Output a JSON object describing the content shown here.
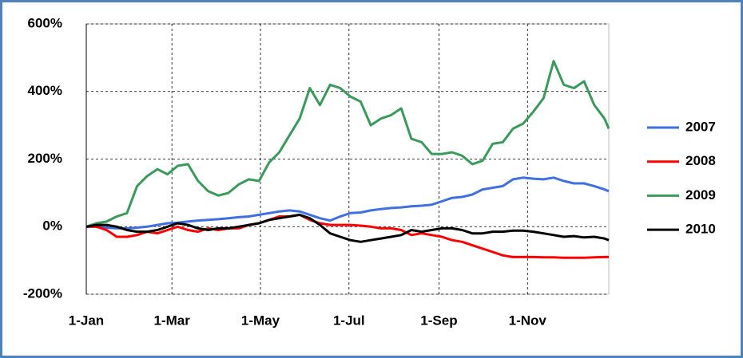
{
  "chart_data": {
    "type": "line",
    "x": [
      0,
      7,
      14,
      21,
      28,
      35,
      42,
      49,
      56,
      63,
      70,
      77,
      84,
      91,
      98,
      105,
      112,
      119,
      126,
      133,
      140,
      147,
      154,
      161,
      168,
      175,
      182,
      189,
      196,
      203,
      210,
      217,
      224,
      231,
      238,
      245,
      252,
      259,
      266,
      273,
      280,
      287,
      294,
      301,
      308,
      315,
      322,
      329,
      336,
      343,
      350,
      357,
      360
    ],
    "xlim": [
      0,
      360
    ],
    "xticks": [
      {
        "value": 0,
        "label": "1-Jan"
      },
      {
        "value": 59,
        "label": "1-Mar"
      },
      {
        "value": 120,
        "label": "1-May"
      },
      {
        "value": 181,
        "label": "1-Jul"
      },
      {
        "value": 243,
        "label": "1-Sep"
      },
      {
        "value": 304,
        "label": "1-Nov"
      }
    ],
    "ylim": [
      -200,
      600
    ],
    "yticks": [
      {
        "value": -200,
        "label": "-200%"
      },
      {
        "value": 0,
        "label": "0%"
      },
      {
        "value": 200,
        "label": "200%"
      },
      {
        "value": 400,
        "label": "400%"
      },
      {
        "value": 600,
        "label": "600%"
      }
    ],
    "grid": true,
    "legend": "right",
    "series": [
      {
        "name": "2007",
        "color": "#3f6fe0",
        "values": [
          0,
          0,
          -3,
          -5,
          -5,
          -3,
          0,
          5,
          10,
          12,
          15,
          18,
          20,
          22,
          25,
          28,
          30,
          35,
          40,
          45,
          48,
          45,
          35,
          25,
          18,
          30,
          40,
          42,
          48,
          52,
          55,
          57,
          60,
          62,
          65,
          75,
          85,
          88,
          95,
          110,
          115,
          120,
          140,
          145,
          142,
          140,
          145,
          135,
          128,
          128,
          120,
          110,
          105
        ]
      },
      {
        "name": "2008",
        "color": "#ff0000",
        "values": [
          0,
          0,
          -10,
          -30,
          -30,
          -25,
          -15,
          -20,
          -10,
          0,
          -10,
          -15,
          -5,
          -10,
          -5,
          -5,
          5,
          10,
          20,
          30,
          30,
          35,
          20,
          10,
          5,
          5,
          5,
          3,
          0,
          -5,
          -5,
          -10,
          -25,
          -20,
          -25,
          -30,
          -40,
          -45,
          -55,
          -65,
          -75,
          -85,
          -90,
          -90,
          -90,
          -91,
          -91,
          -92,
          -92,
          -92,
          -91,
          -90,
          -90
        ]
      },
      {
        "name": "2009",
        "color": "#3a9a5c",
        "values": [
          0,
          10,
          15,
          30,
          40,
          120,
          150,
          170,
          155,
          180,
          185,
          135,
          105,
          92,
          100,
          125,
          140,
          135,
          190,
          220,
          270,
          320,
          410,
          360,
          420,
          410,
          385,
          370,
          300,
          320,
          330,
          350,
          260,
          250,
          215,
          215,
          220,
          210,
          185,
          195,
          245,
          250,
          290,
          305,
          340,
          380,
          490,
          420,
          410,
          430,
          360,
          320,
          290
        ]
      },
      {
        "name": "2010",
        "color": "#000000",
        "values": [
          0,
          5,
          5,
          0,
          -10,
          -15,
          -15,
          -10,
          0,
          10,
          5,
          -5,
          -10,
          -5,
          -5,
          0,
          5,
          10,
          20,
          25,
          30,
          35,
          25,
          5,
          -20,
          -30,
          -40,
          -45,
          -40,
          -35,
          -30,
          -25,
          -10,
          -15,
          -10,
          -5,
          -5,
          -10,
          -20,
          -20,
          -15,
          -15,
          -12,
          -12,
          -15,
          -20,
          -25,
          -30,
          -28,
          -32,
          -30,
          -35,
          -40
        ]
      }
    ]
  }
}
